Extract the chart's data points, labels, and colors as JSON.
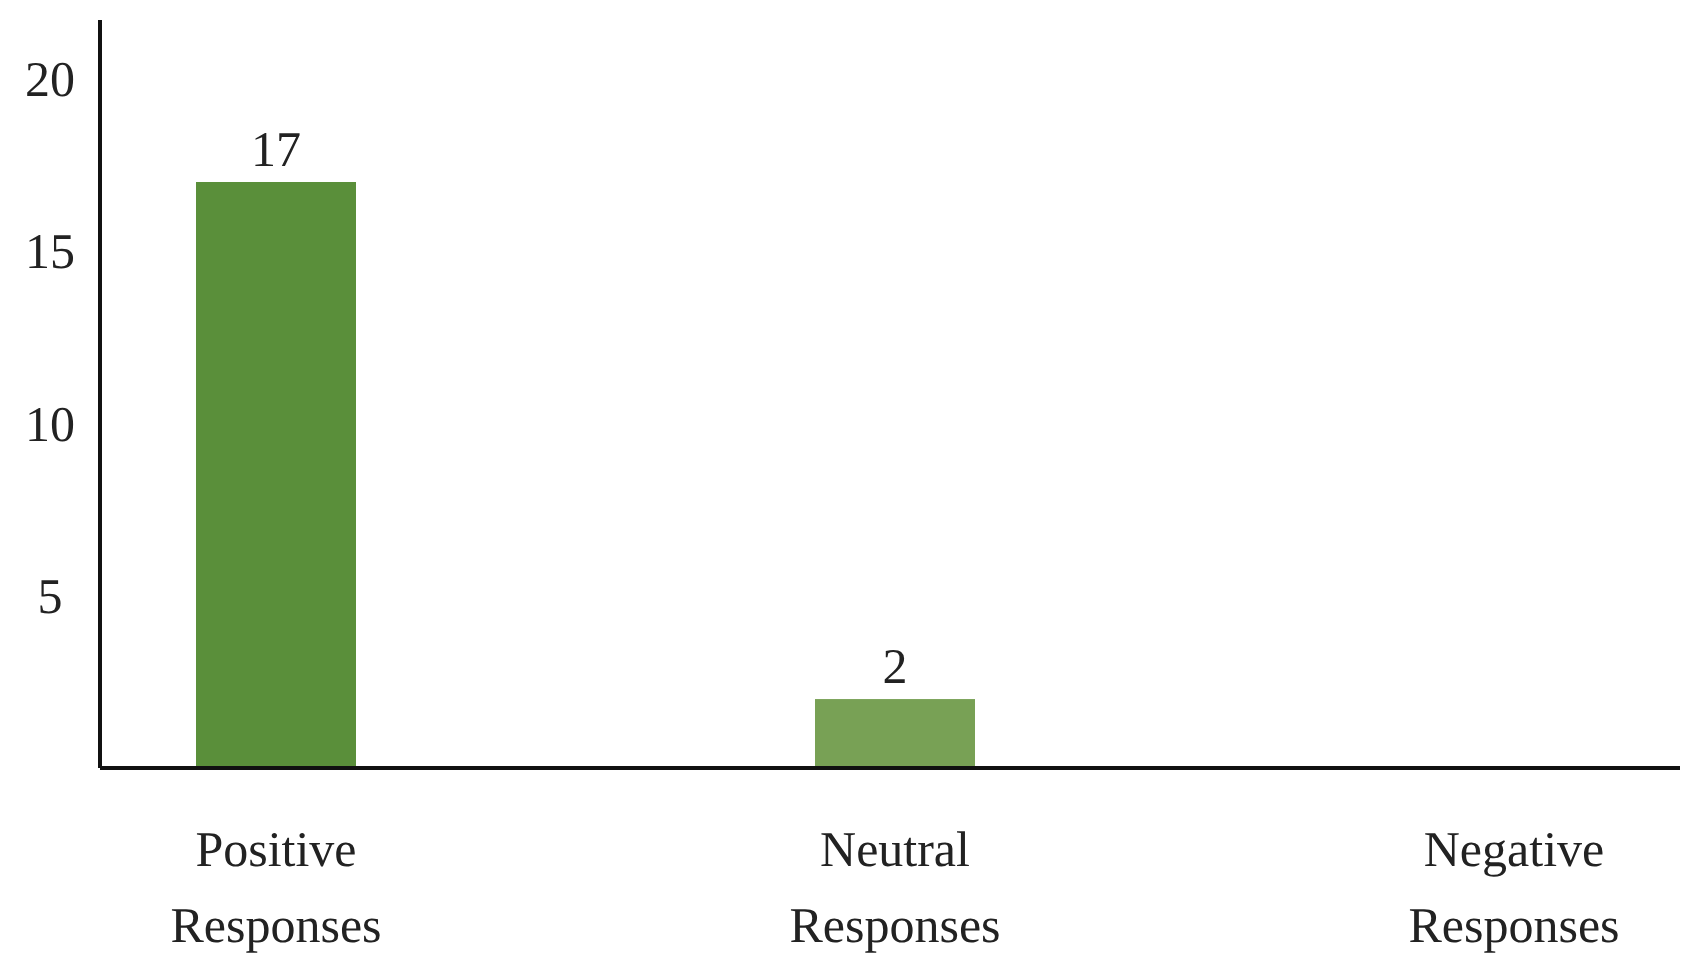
{
  "chart_data": {
    "type": "bar",
    "categories": [
      "Positive Responses",
      "Neutral Responses",
      "Negative Responses"
    ],
    "values": [
      17,
      2,
      0
    ],
    "colors": [
      "#5a8f3a",
      "#78a155",
      "#78a155"
    ],
    "value_labels": [
      "17",
      "2",
      null
    ],
    "ylim": [
      0,
      21.7
    ],
    "yticks": [
      5,
      10,
      15,
      20
    ]
  }
}
